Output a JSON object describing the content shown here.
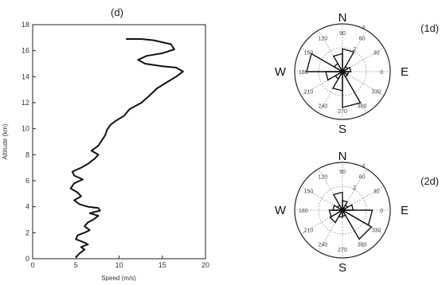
{
  "chart_data": [
    {
      "type": "line",
      "title": "(d)",
      "xlabel": "Speed (m/s)",
      "ylabel": "Altitude (km)",
      "xlim": [
        0,
        20
      ],
      "ylim": [
        0,
        18
      ],
      "xticks": [
        "0",
        "5",
        "10",
        "15",
        "20"
      ],
      "yticks": [
        "0",
        "2",
        "4",
        "6",
        "8",
        "10",
        "12",
        "14",
        "16",
        "18"
      ],
      "grid": false,
      "series": [
        {
          "x": [
            5.0,
            5.4,
            6.0,
            5.6,
            6.4,
            5.8,
            5.0,
            5.2,
            6.0,
            6.6,
            6.0,
            6.4,
            7.0,
            7.6,
            6.6,
            7.8,
            7.6,
            6.4,
            5.4,
            4.8,
            5.6,
            5.2,
            4.4,
            4.8,
            5.8,
            4.8,
            4.6,
            5.6,
            6.4,
            7.2,
            7.6,
            6.8,
            7.6,
            8.0,
            8.4,
            8.6,
            9.0,
            9.6,
            10.6,
            11.2,
            12.6,
            13.6,
            14.4,
            15.6,
            16.6,
            17.4,
            16.6,
            15.0,
            13.0,
            12.2,
            13.2,
            15.0,
            16.4,
            16.0,
            14.0,
            12.6,
            10.8
          ],
          "y": [
            0.1,
            0.4,
            0.7,
            0.9,
            1.1,
            1.3,
            1.5,
            1.8,
            2.0,
            2.2,
            2.5,
            2.8,
            3.0,
            3.3,
            3.5,
            3.7,
            3.9,
            4.0,
            4.2,
            4.5,
            4.8,
            5.1,
            5.4,
            5.8,
            6.1,
            6.4,
            6.7,
            7.0,
            7.3,
            7.7,
            8.0,
            8.3,
            8.7,
            9.1,
            9.5,
            9.9,
            10.3,
            10.6,
            11.0,
            11.5,
            12.0,
            12.6,
            13.1,
            13.6,
            14.0,
            14.4,
            14.7,
            14.8,
            15.0,
            15.3,
            15.6,
            15.8,
            16.1,
            16.5,
            16.8,
            16.9,
            16.9
          ]
        }
      ]
    },
    {
      "type": "rose",
      "label": "(1d)",
      "compass": {
        "n": "N",
        "s": "S",
        "e": "E",
        "w": "W"
      },
      "angle_ticks": [
        "90",
        "60",
        "30",
        "0",
        "330",
        "300",
        "270",
        "240",
        "210",
        "180",
        "150",
        "120"
      ],
      "radial_ticks": [
        "2",
        "4"
      ],
      "rmax": 4,
      "petals": [
        {
          "dir": 165,
          "r": 3.0
        },
        {
          "dir": 195,
          "r": 1.4
        },
        {
          "dir": 75,
          "r": 1.9
        },
        {
          "dir": 105,
          "r": 1.5
        },
        {
          "dir": 285,
          "r": 3.0
        },
        {
          "dir": 255,
          "r": 1.6
        },
        {
          "dir": 15,
          "r": 0.7
        },
        {
          "dir": 225,
          "r": 0.7
        },
        {
          "dir": 135,
          "r": 0.8
        },
        {
          "dir": 45,
          "r": 0.5
        },
        {
          "dir": 315,
          "r": 0.5
        },
        {
          "dir": 345,
          "r": 0.5
        }
      ]
    },
    {
      "type": "rose",
      "label": "(2d)",
      "compass": {
        "n": "N",
        "s": "S",
        "e": "E",
        "w": "W"
      },
      "angle_ticks": [
        "90",
        "60",
        "30",
        "0",
        "330",
        "300",
        "270",
        "240",
        "210",
        "180",
        "150",
        "120"
      ],
      "radial_ticks": [
        "2",
        "4"
      ],
      "rmax": 4,
      "petals": [
        {
          "dir": 345,
          "r": 2.5
        },
        {
          "dir": 315,
          "r": 2.8
        },
        {
          "dir": 15,
          "r": 0.9
        },
        {
          "dir": 195,
          "r": 1.1
        },
        {
          "dir": 225,
          "r": 1.2
        },
        {
          "dir": 105,
          "r": 1.5
        },
        {
          "dir": 75,
          "r": 0.8
        },
        {
          "dir": 165,
          "r": 0.8
        },
        {
          "dir": 45,
          "r": 0.5
        },
        {
          "dir": 135,
          "r": 0.5
        },
        {
          "dir": 255,
          "r": 0.6
        },
        {
          "dir": 285,
          "r": 0.5
        }
      ]
    }
  ]
}
